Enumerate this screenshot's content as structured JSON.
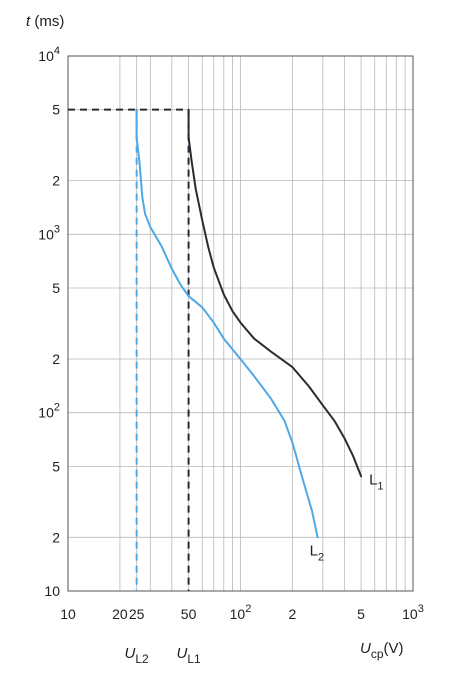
{
  "chart_data": {
    "type": "line",
    "title": "",
    "xscale": "log",
    "yscale": "log",
    "xlim": [
      10,
      1000
    ],
    "ylim": [
      10,
      10000
    ],
    "grid": true,
    "y_axis_title": {
      "symbol": "t",
      "unit": " (ms)"
    },
    "x_axis_title": {
      "symbol": "U",
      "subscript": "cp",
      "unit": "(V)"
    },
    "x_ticks": [
      {
        "value": 10,
        "base": "10",
        "exp": ""
      },
      {
        "value": 20,
        "base": "20",
        "exp": ""
      },
      {
        "value": 25,
        "base": "25",
        "exp": ""
      },
      {
        "value": 50,
        "base": "50",
        "exp": ""
      },
      {
        "value": 100,
        "base": "10",
        "exp": "2"
      },
      {
        "value": 200,
        "base": "2",
        "exp": ""
      },
      {
        "value": 500,
        "base": "5",
        "exp": ""
      },
      {
        "value": 1000,
        "base": "10",
        "exp": "3"
      }
    ],
    "y_ticks": [
      {
        "value": 10,
        "base": "10",
        "exp": ""
      },
      {
        "value": 20,
        "base": "2",
        "exp": ""
      },
      {
        "value": 50,
        "base": "5",
        "exp": ""
      },
      {
        "value": 100,
        "base": "10",
        "exp": "2"
      },
      {
        "value": 200,
        "base": "2",
        "exp": ""
      },
      {
        "value": 500,
        "base": "5",
        "exp": ""
      },
      {
        "value": 1000,
        "base": "10",
        "exp": "3"
      },
      {
        "value": 2000,
        "base": "2",
        "exp": ""
      },
      {
        "value": 5000,
        "base": "5",
        "exp": ""
      },
      {
        "value": 10000,
        "base": "10",
        "exp": "4"
      }
    ],
    "x_gridlines": [
      10,
      20,
      25,
      30,
      40,
      50,
      60,
      70,
      80,
      90,
      100,
      200,
      300,
      400,
      500,
      600,
      700,
      800,
      900,
      1000
    ],
    "y_gridlines": [
      10,
      20,
      50,
      100,
      200,
      500,
      1000,
      2000,
      5000,
      10000
    ],
    "series": [
      {
        "name": "L",
        "name_sub": "1",
        "color": "#2b2b33",
        "points": [
          [
            50,
            5000
          ],
          [
            50,
            3500
          ],
          [
            52,
            2600
          ],
          [
            55,
            1800
          ],
          [
            60,
            1200
          ],
          [
            65,
            850
          ],
          [
            70,
            650
          ],
          [
            80,
            460
          ],
          [
            90,
            370
          ],
          [
            100,
            320
          ],
          [
            120,
            260
          ],
          [
            150,
            220
          ],
          [
            200,
            180
          ],
          [
            250,
            140
          ],
          [
            300,
            110
          ],
          [
            350,
            90
          ],
          [
            400,
            72
          ],
          [
            450,
            57
          ],
          [
            500,
            44
          ]
        ]
      },
      {
        "name": "L",
        "name_sub": "2",
        "color": "#4ea9e6",
        "points": [
          [
            25,
            5000
          ],
          [
            25,
            3500
          ],
          [
            26,
            2500
          ],
          [
            27,
            1600
          ],
          [
            28,
            1300
          ],
          [
            30,
            1100
          ],
          [
            35,
            850
          ],
          [
            40,
            640
          ],
          [
            45,
            520
          ],
          [
            50,
            450
          ],
          [
            60,
            390
          ],
          [
            70,
            320
          ],
          [
            80,
            260
          ],
          [
            100,
            200
          ],
          [
            120,
            160
          ],
          [
            150,
            120
          ],
          [
            180,
            90
          ],
          [
            200,
            68
          ],
          [
            230,
            42
          ],
          [
            260,
            28
          ],
          [
            280,
            20
          ]
        ]
      }
    ],
    "limit_lines": [
      {
        "name": "U",
        "name_sub": "L1",
        "x": 50,
        "y_top": 5000,
        "color": "#2b2b33"
      },
      {
        "name": "U",
        "name_sub": "L2",
        "x": 25,
        "y_top": 5000,
        "color": "#4ea9e6"
      }
    ]
  }
}
